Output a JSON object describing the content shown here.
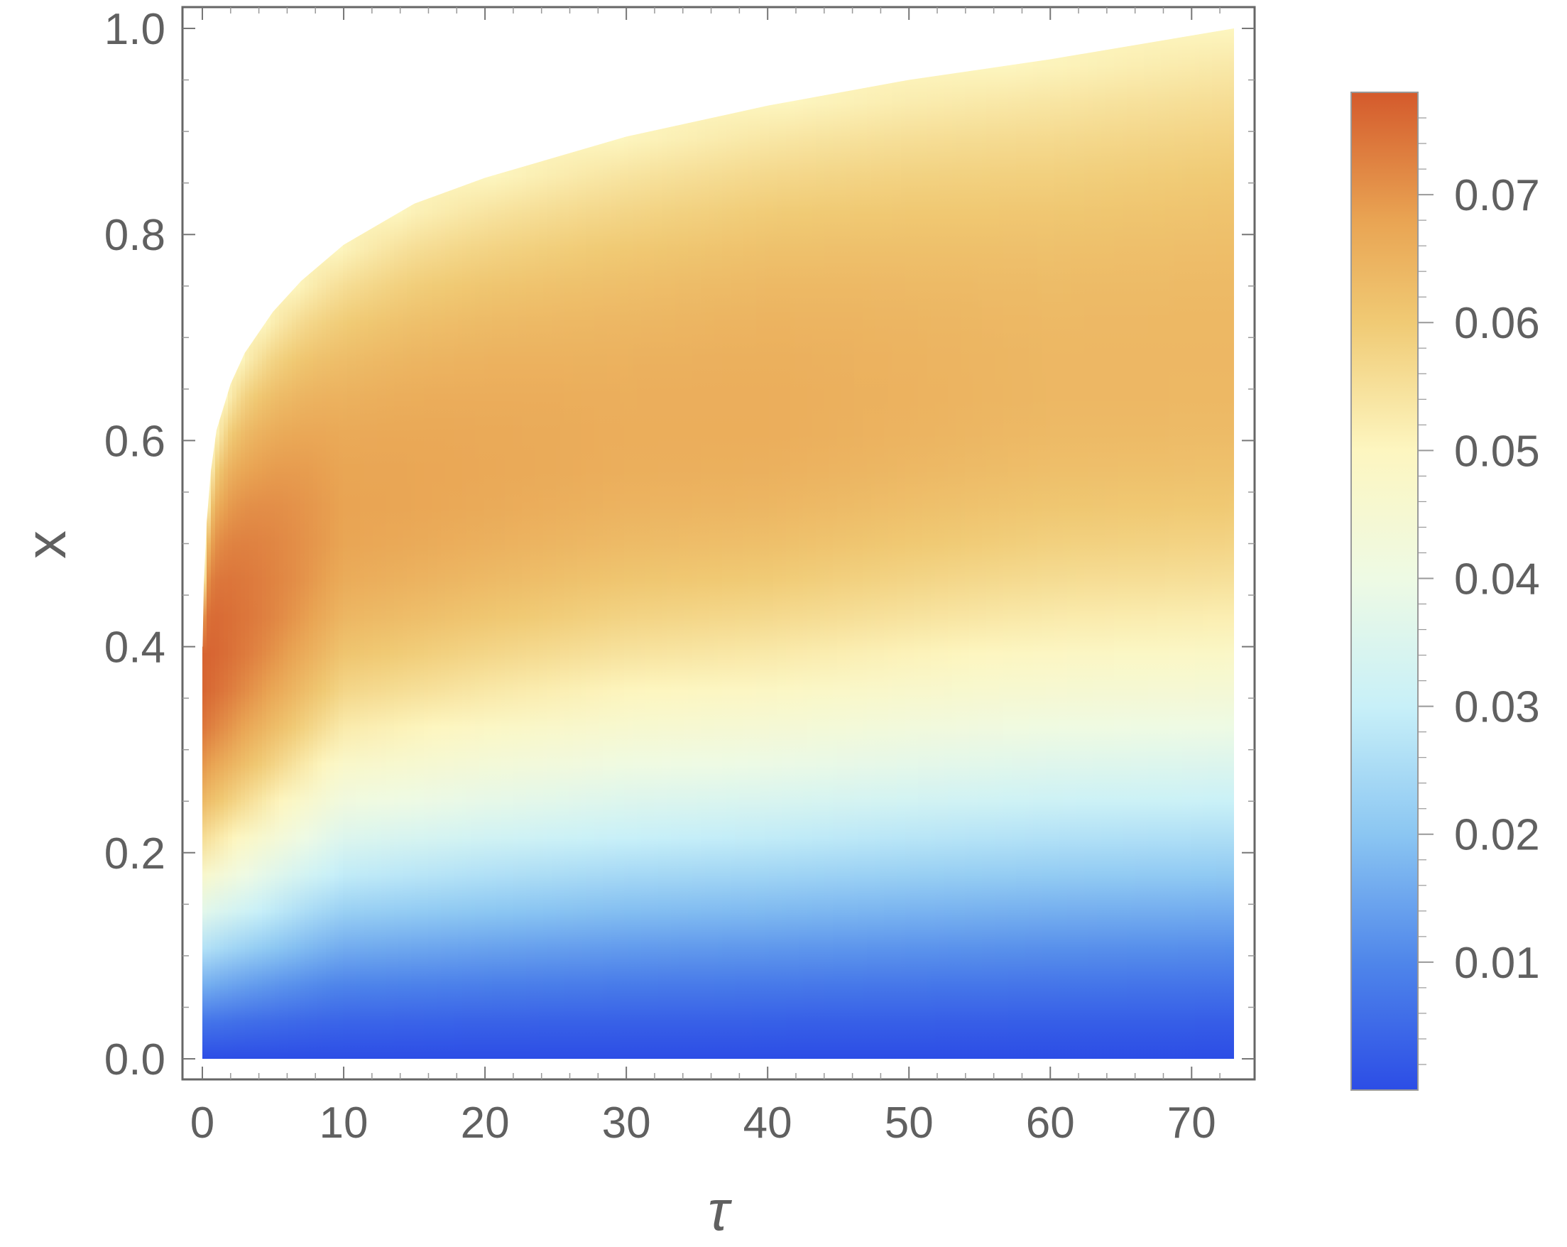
{
  "chart_data": {
    "type": "heatmap",
    "title": "",
    "xlabel": "τ",
    "ylabel": "x",
    "xlim": [
      0,
      73
    ],
    "ylim": [
      0.0,
      1.0
    ],
    "x_ticks": [
      0,
      10,
      20,
      30,
      40,
      50,
      60,
      70
    ],
    "y_ticks": [
      0.0,
      0.2,
      0.4,
      0.6,
      0.8,
      1.0
    ],
    "x_tick_labels": [
      "0",
      "10",
      "20",
      "30",
      "40",
      "50",
      "60",
      "70"
    ],
    "y_tick_labels": [
      "0.0",
      "0.2",
      "0.4",
      "0.6",
      "0.8",
      "1.0"
    ],
    "domain_upper_boundary": {
      "tau": [
        0.02,
        0.1,
        0.3,
        0.6,
        1,
        2,
        3,
        5,
        7,
        10,
        15,
        20,
        25,
        30,
        40,
        50,
        60,
        73
      ],
      "x": [
        0.4,
        0.46,
        0.52,
        0.57,
        0.61,
        0.655,
        0.685,
        0.725,
        0.755,
        0.79,
        0.83,
        0.855,
        0.875,
        0.895,
        0.925,
        0.95,
        0.97,
        1.0
      ]
    },
    "peak_value_profile": {
      "tau": [
        0,
        10,
        20,
        30,
        40,
        50,
        60,
        73
      ],
      "x_of_peak": [
        0.38,
        0.53,
        0.57,
        0.6,
        0.62,
        0.64,
        0.655,
        0.67
      ],
      "peak_value": [
        0.077,
        0.068,
        0.067,
        0.066,
        0.066,
        0.065,
        0.064,
        0.064
      ]
    },
    "value_at_lower_edge": 0.0,
    "colorbar": {
      "range": [
        0.0,
        0.078
      ],
      "ticks": [
        0.01,
        0.02,
        0.03,
        0.04,
        0.05,
        0.06,
        0.07
      ],
      "tick_labels": [
        "0.01",
        "0.02",
        "0.03",
        "0.04",
        "0.05",
        "0.06",
        "0.07"
      ],
      "colormap": [
        {
          "value": 0.0,
          "color": "#2c4de6"
        },
        {
          "value": 0.01,
          "color": "#4f86ea"
        },
        {
          "value": 0.02,
          "color": "#8bc6f2"
        },
        {
          "value": 0.03,
          "color": "#c8f0f8"
        },
        {
          "value": 0.04,
          "color": "#eefae4"
        },
        {
          "value": 0.05,
          "color": "#fdf6c0"
        },
        {
          "value": 0.06,
          "color": "#f0ca74"
        },
        {
          "value": 0.068,
          "color": "#e9a453"
        },
        {
          "value": 0.078,
          "color": "#d45a2c"
        }
      ]
    }
  }
}
